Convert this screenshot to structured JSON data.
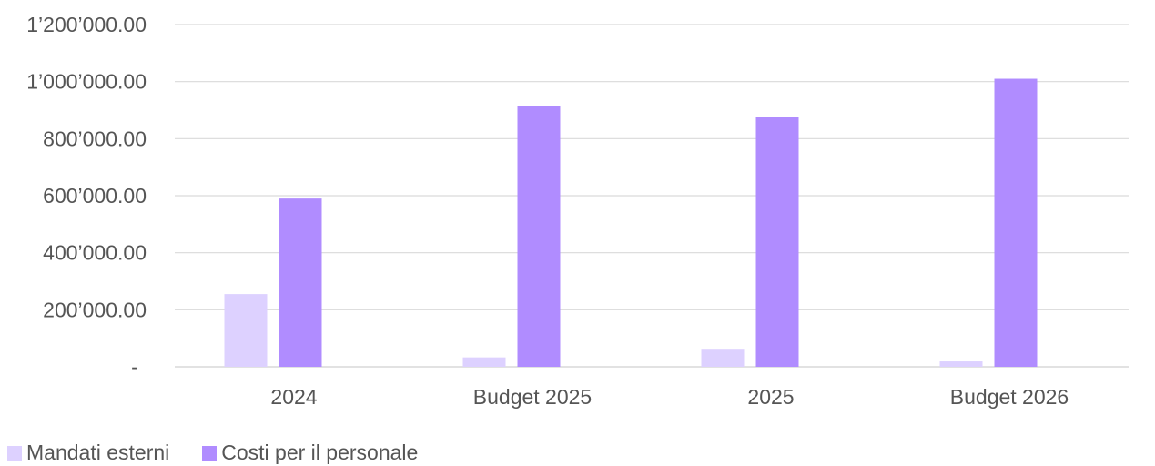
{
  "chart_data": {
    "type": "bar",
    "categories": [
      "2024",
      "Budget 2025",
      "2025",
      "Budget 2026"
    ],
    "series": [
      {
        "name": "Mandati esterni",
        "color": "#ddd1ff",
        "values": [
          255000,
          33000,
          60000,
          19000
        ]
      },
      {
        "name": "Costi per il personale",
        "color": "#b08cff",
        "values": [
          590000,
          915000,
          877000,
          1010000
        ]
      }
    ],
    "ylim": [
      0,
      1200000
    ],
    "yticks": [
      0,
      200000,
      400000,
      600000,
      800000,
      1000000,
      1200000
    ],
    "ytick_labels": [
      "-",
      "200’000.00",
      "400’000.00",
      "600’000.00",
      "800’000.00",
      "1’000’000.00",
      "1’200’000.00"
    ],
    "grid": true,
    "legend_position": "bottom-left",
    "gridline_color": "#d9d9d9"
  }
}
